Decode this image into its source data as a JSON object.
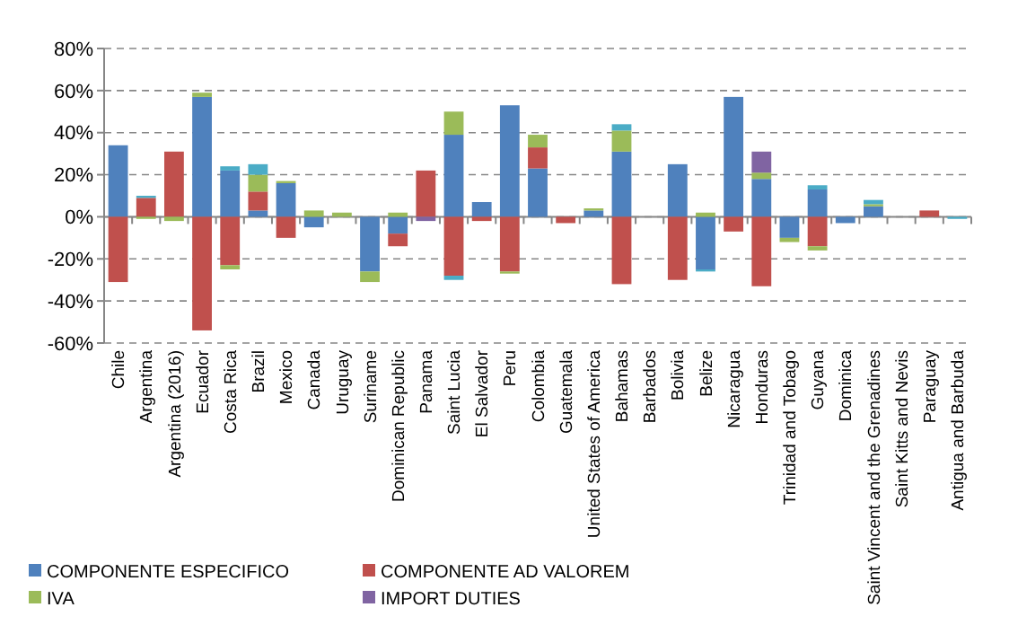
{
  "chart_data": {
    "type": "bar",
    "stacked": true,
    "categories": [
      "Chile",
      "Argentina",
      "Argentina (2016)",
      "Ecuador",
      "Costa Rica",
      "Brazil",
      "Mexico",
      "Canada",
      "Uruguay",
      "Suriname",
      "Dominican Republic",
      "Panama",
      "Saint Lucia",
      "El Salvador",
      "Peru",
      "Colombia",
      "Guatemala",
      "United States of America",
      "Bahamas",
      "Barbados",
      "Bolivia",
      "Belize",
      "Nicaragua",
      "Honduras",
      "Trinidad and Tobago",
      "Guyana",
      "Dominica",
      "Saint Vincent and the Grenadines",
      "Saint Kitts and Nevis",
      "Paraguay",
      "Antigua and Barbuda"
    ],
    "series": [
      {
        "name": "COMPONENTE ESPECIFICO",
        "color": "#4f81bd",
        "values": [
          34,
          null,
          null,
          57,
          22,
          3,
          16,
          -5,
          null,
          -26,
          -8,
          null,
          39,
          7,
          53,
          23,
          null,
          3,
          31,
          null,
          25,
          -25,
          57,
          18,
          -10,
          13,
          -3,
          5,
          null,
          null,
          null
        ]
      },
      {
        "name": "COMPONENTE AD VALOREM",
        "color": "#c0504d",
        "values": [
          -31,
          9,
          31,
          -54,
          -23,
          9,
          -10,
          null,
          null,
          null,
          -6,
          22,
          -28,
          -2,
          -26,
          10,
          -3,
          null,
          -32,
          null,
          -30,
          null,
          -7,
          -33,
          null,
          -14,
          null,
          null,
          null,
          3,
          null
        ]
      },
      {
        "name": "IVA",
        "color": "#9bbb59",
        "values": [
          null,
          -1,
          -2,
          2,
          -2,
          8,
          1,
          3,
          2,
          -5,
          2,
          null,
          11,
          null,
          -1,
          6,
          null,
          1,
          10,
          null,
          null,
          2,
          null,
          3,
          -2,
          -2,
          null,
          1,
          null,
          null,
          null
        ]
      },
      {
        "name": "IMPORT DUTIES",
        "color": "#8064a2",
        "values": [
          null,
          null,
          null,
          null,
          null,
          null,
          null,
          null,
          null,
          null,
          null,
          -2,
          null,
          null,
          null,
          null,
          null,
          null,
          null,
          null,
          null,
          null,
          null,
          10,
          null,
          null,
          null,
          null,
          null,
          null,
          null
        ]
      },
      {
        "color": "#4bacc6",
        "values": [
          null,
          1,
          null,
          null,
          2,
          5,
          null,
          null,
          null,
          null,
          null,
          null,
          -2,
          null,
          null,
          null,
          null,
          null,
          3,
          null,
          null,
          -1,
          null,
          null,
          null,
          2,
          null,
          2,
          null,
          null,
          -1
        ]
      }
    ],
    "ylim": [
      -60,
      80
    ],
    "yticks": [
      {
        "value": -60,
        "label": "-60%"
      },
      {
        "value": -40,
        "label": "-40%"
      },
      {
        "value": -20,
        "label": "-20%"
      },
      {
        "value": 0,
        "label": "0%"
      },
      {
        "value": 20,
        "label": "20%"
      },
      {
        "value": 40,
        "label": "40%"
      },
      {
        "value": 60,
        "label": "60%"
      },
      {
        "value": 80,
        "label": "80%"
      }
    ],
    "grid": "y",
    "legend": "bottom"
  }
}
